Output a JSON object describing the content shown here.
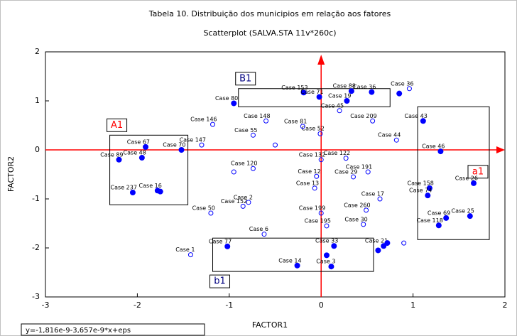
{
  "chart_data": {
    "type": "scatter",
    "title": "Tabela 10. Distribuição dos municipios em relação aos fatores",
    "subtitle": "Scatterplot (SALVA.STA 11v*260c)",
    "x_label": "FACTOR1",
    "y_label": "FACTOR2",
    "equation": "y=-1,816e-9-3,657e-9*x+eps",
    "xlim": [
      -3,
      2
    ],
    "ylim": [
      -3,
      2
    ],
    "xticks": [
      -3,
      -2,
      -1,
      0,
      1,
      2
    ],
    "yticks": [
      -3,
      -2,
      -1,
      0,
      1,
      2
    ],
    "boxes": [
      {
        "label": "A1",
        "color": "#ff0000",
        "x": [
          -2.3,
          -1.45
        ],
        "y": [
          0.3,
          -1.12
        ]
      },
      {
        "label": "B1",
        "color": "#000080",
        "x": [
          -0.9,
          0.75
        ],
        "y": [
          1.25,
          0.88
        ]
      },
      {
        "label": "a1",
        "color": "#ff0000",
        "x": [
          1.05,
          1.83
        ],
        "y": [
          0.88,
          -1.83
        ]
      },
      {
        "label": "b1",
        "color": "#000080",
        "x": [
          -1.18,
          0.57
        ],
        "y": [
          -1.8,
          -2.48
        ]
      }
    ],
    "series": [
      {
        "color": "#0000ff",
        "marker": "filled",
        "x": [
          -2.2,
          -1.91,
          -1.95,
          -1.52,
          -1.78,
          -2.05,
          -1.75,
          -1.02,
          -0.26,
          0.11,
          0.14,
          0.68,
          -0.19,
          -0.02,
          0.33,
          0.55,
          0.85,
          1.11,
          1.3,
          1.66,
          1.62,
          1.36,
          1.28,
          1.18,
          1.16,
          0.72,
          0.06,
          0.62,
          -0.95,
          0.28
        ],
        "y": [
          -0.2,
          0.06,
          -0.16,
          0.0,
          -0.83,
          -0.87,
          -0.85,
          -1.97,
          -2.36,
          -2.38,
          -1.96,
          -1.96,
          1.17,
          1.08,
          1.2,
          1.18,
          1.15,
          0.59,
          -0.03,
          -0.68,
          -1.35,
          -1.39,
          -1.54,
          -0.78,
          -0.93,
          -1.9,
          -2.15,
          -2.05,
          0.95,
          1.0
        ],
        "labels": [
          "Case 89",
          "Case 67",
          "Case 48",
          "Case 70",
          "Case 16",
          "Case 237",
          null,
          "Case 77",
          "Case 14",
          "Case 3",
          "Case 33",
          "Case 21",
          "Case 153",
          "Case 71",
          "Case 88",
          "Case 36",
          null,
          "Case 43",
          "Case 46",
          "Case 26",
          "Case 25",
          "Case 69",
          "Case 118",
          "Case 158",
          "Case 74",
          null,
          null,
          null,
          "Case 80",
          "Case 19"
        ]
      },
      {
        "color": "#0000ff",
        "marker": "open",
        "x": [
          -1.18,
          -0.6,
          -0.74,
          -0.74,
          -0.79,
          -0.85,
          -1.2,
          -0.62,
          -1.42,
          0.0,
          -0.05,
          -0.07,
          0.0,
          0.06,
          -0.01,
          -0.2,
          0.27,
          0.51,
          0.49,
          0.64,
          0.46,
          0.56,
          0.96,
          -1.3,
          -0.5,
          -0.95,
          0.2,
          0.35,
          0.82,
          0.9
        ],
        "y": [
          0.52,
          0.59,
          0.3,
          -0.38,
          -1.07,
          -1.15,
          -1.29,
          -1.72,
          -2.14,
          -0.2,
          -0.54,
          -0.78,
          -1.29,
          -1.55,
          0.33,
          0.48,
          -0.17,
          -0.45,
          -1.23,
          -1.0,
          -1.52,
          0.59,
          1.25,
          0.1,
          0.1,
          -0.45,
          0.8,
          -0.55,
          0.2,
          -1.9
        ],
        "labels": [
          "Case 146",
          "Case 148",
          "Case 55",
          "Case 120",
          "Case 2",
          "Case 152",
          "Case 50",
          "Case 6",
          "Case 1",
          "Case 132",
          "Case 12",
          "Case 13",
          "Case 199",
          "Case 195",
          "Case 52",
          "Case 81",
          "Case 122",
          "Case 191",
          "Case 260",
          "Case 17",
          "Case 30",
          "Case 209",
          "Case 36",
          "Case 147",
          null,
          null,
          "Case 45",
          "Case 29",
          "Case 44",
          null
        ]
      }
    ]
  }
}
